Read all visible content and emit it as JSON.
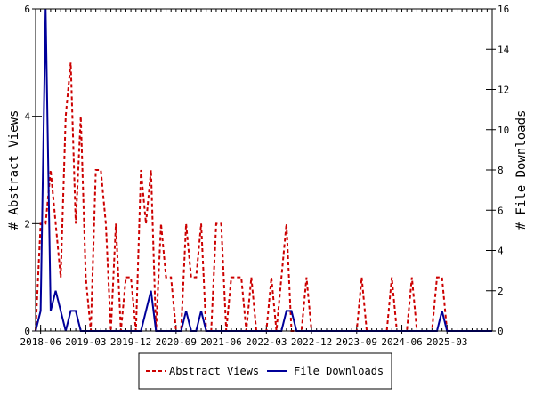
{
  "chart_data": {
    "type": "line",
    "title": "",
    "xlabel": "",
    "ylabel": "# Abstract Views",
    "y2label": "# File Downloads",
    "xlim": [
      "2018-05",
      "2025-12"
    ],
    "ylim": [
      0,
      6
    ],
    "y2lim": [
      0,
      16
    ],
    "x_tick_labels": [
      "2018-06",
      "2019-03",
      "2019-12",
      "2020-09",
      "2021-06",
      "2022-03",
      "2022-12",
      "2023-09",
      "2024-06",
      "2025-03"
    ],
    "y_ticks": [
      0,
      2,
      4,
      6
    ],
    "y2_ticks": [
      0,
      2,
      4,
      6,
      8,
      10,
      12,
      14,
      16
    ],
    "legend_position": "bottom",
    "series": [
      {
        "name": "Abstract Views",
        "axis": "left",
        "color": "#cc0000",
        "style": "dashed",
        "points": [
          [
            "2018-05",
            0
          ],
          [
            "2018-06",
            2
          ],
          [
            "2018-07",
            2
          ],
          [
            "2018-08",
            3
          ],
          [
            "2018-09",
            2
          ],
          [
            "2018-10",
            1
          ],
          [
            "2018-11",
            4
          ],
          [
            "2018-12",
            5
          ],
          [
            "2019-01",
            2
          ],
          [
            "2019-02",
            4
          ],
          [
            "2019-03",
            1
          ],
          [
            "2019-04",
            0
          ],
          [
            "2019-05",
            3
          ],
          [
            "2019-06",
            3
          ],
          [
            "2019-07",
            2
          ],
          [
            "2019-08",
            0
          ],
          [
            "2019-09",
            2
          ],
          [
            "2019-10",
            0
          ],
          [
            "2019-11",
            1
          ],
          [
            "2019-12",
            1
          ],
          [
            "2020-01",
            0
          ],
          [
            "2020-02",
            3
          ],
          [
            "2020-03",
            2
          ],
          [
            "2020-04",
            3
          ],
          [
            "2020-05",
            0
          ],
          [
            "2020-06",
            2
          ],
          [
            "2020-07",
            1
          ],
          [
            "2020-08",
            1
          ],
          [
            "2020-09",
            0
          ],
          [
            "2020-10",
            0
          ],
          [
            "2020-11",
            2
          ],
          [
            "2020-12",
            1
          ],
          [
            "2021-01",
            1
          ],
          [
            "2021-02",
            2
          ],
          [
            "2021-03",
            0
          ],
          [
            "2021-04",
            0
          ],
          [
            "2021-05",
            2
          ],
          [
            "2021-06",
            2
          ],
          [
            "2021-07",
            0
          ],
          [
            "2021-08",
            1
          ],
          [
            "2021-09",
            1
          ],
          [
            "2021-10",
            1
          ],
          [
            "2021-11",
            0
          ],
          [
            "2021-12",
            1
          ],
          [
            "2022-01",
            0
          ],
          [
            "2022-02",
            0
          ],
          [
            "2022-03",
            0
          ],
          [
            "2022-04",
            1
          ],
          [
            "2022-05",
            0
          ],
          [
            "2022-06",
            1
          ],
          [
            "2022-07",
            2
          ],
          [
            "2022-08",
            0
          ],
          [
            "2022-09",
            0
          ],
          [
            "2022-10",
            0
          ],
          [
            "2022-11",
            1
          ],
          [
            "2022-12",
            0
          ],
          [
            "2023-01",
            0
          ],
          [
            "2023-02",
            0
          ],
          [
            "2023-03",
            0
          ],
          [
            "2023-04",
            0
          ],
          [
            "2023-05",
            0
          ],
          [
            "2023-06",
            0
          ],
          [
            "2023-07",
            0
          ],
          [
            "2023-08",
            0
          ],
          [
            "2023-09",
            0
          ],
          [
            "2023-10",
            1
          ],
          [
            "2023-11",
            0
          ],
          [
            "2023-12",
            0
          ],
          [
            "2024-01",
            0
          ],
          [
            "2024-02",
            0
          ],
          [
            "2024-03",
            0
          ],
          [
            "2024-04",
            1
          ],
          [
            "2024-05",
            0
          ],
          [
            "2024-06",
            0
          ],
          [
            "2024-07",
            0
          ],
          [
            "2024-08",
            1
          ],
          [
            "2024-09",
            0
          ],
          [
            "2024-10",
            0
          ],
          [
            "2024-11",
            0
          ],
          [
            "2024-12",
            0
          ],
          [
            "2025-01",
            1
          ],
          [
            "2025-02",
            1
          ],
          [
            "2025-03",
            0
          ],
          [
            "2025-04",
            0
          ],
          [
            "2025-05",
            0
          ],
          [
            "2025-06",
            0
          ],
          [
            "2025-07",
            0
          ],
          [
            "2025-08",
            0
          ],
          [
            "2025-09",
            0
          ],
          [
            "2025-10",
            0
          ],
          [
            "2025-11",
            0
          ],
          [
            "2025-12",
            0
          ]
        ]
      },
      {
        "name": "File Downloads",
        "axis": "right",
        "color": "#000099",
        "style": "solid",
        "points": [
          [
            "2018-05",
            0
          ],
          [
            "2018-06",
            1
          ],
          [
            "2018-07",
            16
          ],
          [
            "2018-08",
            1
          ],
          [
            "2018-09",
            2
          ],
          [
            "2018-10",
            1
          ],
          [
            "2018-11",
            0
          ],
          [
            "2018-12",
            1
          ],
          [
            "2019-01",
            1
          ],
          [
            "2019-02",
            0
          ],
          [
            "2019-03",
            0
          ],
          [
            "2019-04",
            0
          ],
          [
            "2019-05",
            0
          ],
          [
            "2019-06",
            0
          ],
          [
            "2019-07",
            0
          ],
          [
            "2019-08",
            0
          ],
          [
            "2019-09",
            0
          ],
          [
            "2019-10",
            0
          ],
          [
            "2019-11",
            0
          ],
          [
            "2019-12",
            0
          ],
          [
            "2020-01",
            0
          ],
          [
            "2020-02",
            0
          ],
          [
            "2020-03",
            1
          ],
          [
            "2020-04",
            2
          ],
          [
            "2020-05",
            0
          ],
          [
            "2020-06",
            0
          ],
          [
            "2020-07",
            0
          ],
          [
            "2020-08",
            0
          ],
          [
            "2020-09",
            0
          ],
          [
            "2020-10",
            0
          ],
          [
            "2020-11",
            1
          ],
          [
            "2020-12",
            0
          ],
          [
            "2021-01",
            0
          ],
          [
            "2021-02",
            1
          ],
          [
            "2021-03",
            0
          ],
          [
            "2021-04",
            0
          ],
          [
            "2021-05",
            0
          ],
          [
            "2021-06",
            0
          ],
          [
            "2021-07",
            0
          ],
          [
            "2021-08",
            0
          ],
          [
            "2021-09",
            0
          ],
          [
            "2021-10",
            0
          ],
          [
            "2021-11",
            0
          ],
          [
            "2021-12",
            0
          ],
          [
            "2022-01",
            0
          ],
          [
            "2022-02",
            0
          ],
          [
            "2022-03",
            0
          ],
          [
            "2022-04",
            0
          ],
          [
            "2022-05",
            0
          ],
          [
            "2022-06",
            0
          ],
          [
            "2022-07",
            1
          ],
          [
            "2022-08",
            1
          ],
          [
            "2022-09",
            0
          ],
          [
            "2022-10",
            0
          ],
          [
            "2022-11",
            0
          ],
          [
            "2022-12",
            0
          ],
          [
            "2023-01",
            0
          ],
          [
            "2023-02",
            0
          ],
          [
            "2023-03",
            0
          ],
          [
            "2023-04",
            0
          ],
          [
            "2023-05",
            0
          ],
          [
            "2023-06",
            0
          ],
          [
            "2023-07",
            0
          ],
          [
            "2023-08",
            0
          ],
          [
            "2023-09",
            0
          ],
          [
            "2023-10",
            0
          ],
          [
            "2023-11",
            0
          ],
          [
            "2023-12",
            0
          ],
          [
            "2024-01",
            0
          ],
          [
            "2024-02",
            0
          ],
          [
            "2024-03",
            0
          ],
          [
            "2024-04",
            0
          ],
          [
            "2024-05",
            0
          ],
          [
            "2024-06",
            0
          ],
          [
            "2024-07",
            0
          ],
          [
            "2024-08",
            0
          ],
          [
            "2024-09",
            0
          ],
          [
            "2024-10",
            0
          ],
          [
            "2024-11",
            0
          ],
          [
            "2024-12",
            0
          ],
          [
            "2025-01",
            0
          ],
          [
            "2025-02",
            1
          ],
          [
            "2025-03",
            0
          ],
          [
            "2025-04",
            0
          ],
          [
            "2025-05",
            0
          ],
          [
            "2025-06",
            0
          ],
          [
            "2025-07",
            0
          ],
          [
            "2025-08",
            0
          ],
          [
            "2025-09",
            0
          ],
          [
            "2025-10",
            0
          ],
          [
            "2025-11",
            0
          ],
          [
            "2025-12",
            0
          ]
        ]
      }
    ]
  }
}
